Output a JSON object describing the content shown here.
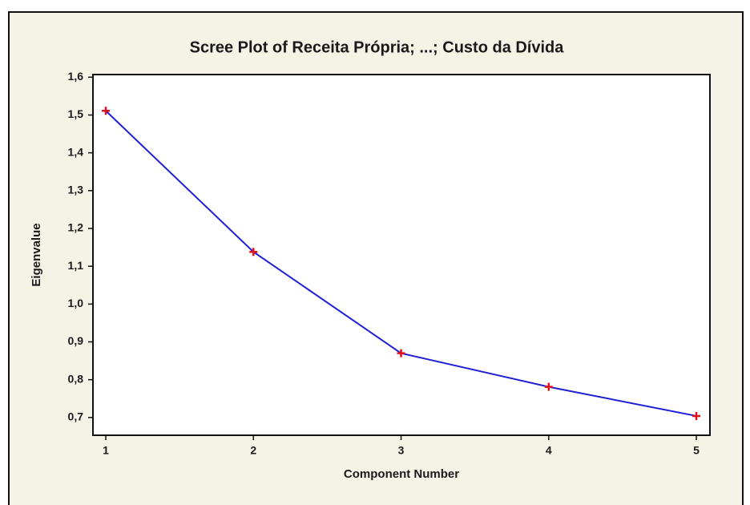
{
  "chart_data": {
    "type": "line",
    "title": "Scree Plot of Receita Própria; ...; Custo da Dívida",
    "x_label": "Component Number",
    "y_label": "Eigenvalue",
    "x": [
      1,
      2,
      3,
      4,
      5
    ],
    "values": [
      1.511,
      1.138,
      0.87,
      0.781,
      0.704
    ],
    "color": "#1f1fd6",
    "marker_color": "#e0101a",
    "xlim": [
      0.913,
      5.092
    ],
    "ylim": [
      0.653,
      1.607
    ],
    "xticks": [
      1,
      2,
      3,
      4,
      5
    ],
    "yticks": [
      {
        "value": 0.7,
        "label": "0,7"
      },
      {
        "value": 0.8,
        "label": "0,8"
      },
      {
        "value": 0.9,
        "label": "0,9"
      },
      {
        "value": 1.0,
        "label": "1,0"
      },
      {
        "value": 1.1,
        "label": "1,1"
      },
      {
        "value": 1.2,
        "label": "1,2"
      },
      {
        "value": 1.3,
        "label": "1,3"
      },
      {
        "value": 1.4,
        "label": "1,4"
      },
      {
        "value": 1.5,
        "label": "1,5"
      },
      {
        "value": 1.6,
        "label": "1,6"
      }
    ]
  }
}
